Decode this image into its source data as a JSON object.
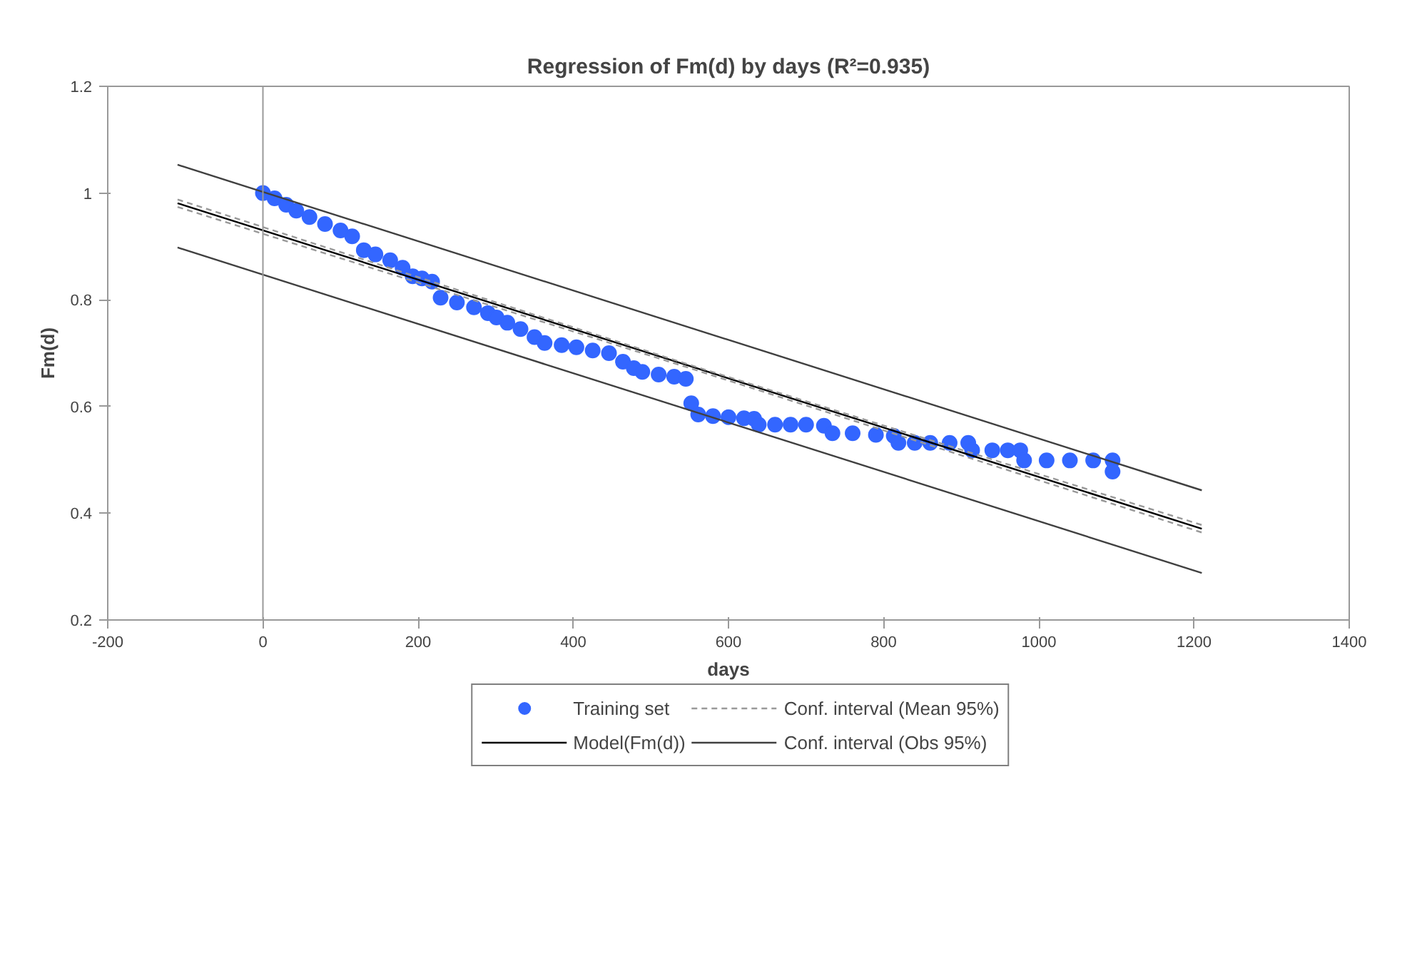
{
  "chart_data": {
    "type": "scatter",
    "title": "Regression of Fm(d) by days (R²=0.935)",
    "xlabel": "days",
    "ylabel": "Fm(d)",
    "xlim": [
      -200,
      1400
    ],
    "xticks": [
      -200,
      0,
      200,
      400,
      600,
      800,
      1000,
      1200,
      1400
    ],
    "ylim": [
      0.2,
      1.2
    ],
    "yticks": [
      0.2,
      0.4,
      0.6,
      0.8,
      1,
      1.2
    ],
    "grid": false,
    "legend": "bottom",
    "ref_lines": [
      {
        "axis": "x",
        "value": 0,
        "color": "#999999"
      }
    ],
    "series": [
      {
        "name": "Training set",
        "marker": "circle",
        "color": "#3366ff",
        "x": [
          0,
          15,
          30,
          43,
          60,
          80,
          100,
          115,
          130,
          145,
          164,
          180,
          193,
          205,
          218,
          229,
          250,
          272,
          290,
          301,
          315,
          332,
          350,
          363,
          385,
          404,
          425,
          446,
          464,
          478,
          489,
          510,
          530,
          545,
          552,
          561,
          580,
          600,
          620,
          633,
          639,
          660,
          680,
          700,
          723,
          734,
          760,
          790,
          813,
          819,
          840,
          860,
          885,
          909,
          914,
          940,
          960,
          976,
          981,
          1010,
          1040,
          1070,
          1095,
          1095
        ],
        "values": [
          1.0,
          0.99,
          0.978,
          0.967,
          0.955,
          0.942,
          0.93,
          0.919,
          0.893,
          0.885,
          0.874,
          0.86,
          0.844,
          0.84,
          0.834,
          0.804,
          0.795,
          0.786,
          0.775,
          0.767,
          0.757,
          0.745,
          0.73,
          0.719,
          0.715,
          0.711,
          0.705,
          0.7,
          0.684,
          0.672,
          0.665,
          0.66,
          0.656,
          0.652,
          0.606,
          0.585,
          0.582,
          0.58,
          0.578,
          0.577,
          0.566,
          0.566,
          0.566,
          0.566,
          0.564,
          0.55,
          0.55,
          0.547,
          0.545,
          0.532,
          0.532,
          0.532,
          0.532,
          0.532,
          0.518,
          0.518,
          0.518,
          0.518,
          0.499,
          0.499,
          0.499,
          0.499,
          0.499,
          0.478
        ]
      },
      {
        "name": "Model(Fm(d))",
        "type": "line",
        "color": "#000000",
        "line_style": "solid",
        "x": [
          -110,
          1210
        ],
        "values": [
          0.981,
          0.371
        ]
      },
      {
        "name": "Conf. interval (Mean 95%)",
        "type": "line",
        "color": "#999999",
        "line_style": "dashed",
        "x": [
          -110,
          550,
          1210
        ],
        "values": [
          0.988,
          0.678,
          0.378
        ]
      },
      {
        "type": "line",
        "color": "#999999",
        "line_style": "dashed",
        "x": [
          -110,
          550,
          1210
        ],
        "values": [
          0.974,
          0.672,
          0.364
        ]
      },
      {
        "name": "Conf. interval (Obs 95%)",
        "type": "line",
        "color": "#404040",
        "line_style": "solid",
        "x": [
          -110,
          1210
        ],
        "values": [
          1.053,
          0.443
        ]
      },
      {
        "type": "line",
        "color": "#404040",
        "line_style": "solid",
        "x": [
          -110,
          1210
        ],
        "values": [
          0.898,
          0.288
        ]
      }
    ]
  }
}
